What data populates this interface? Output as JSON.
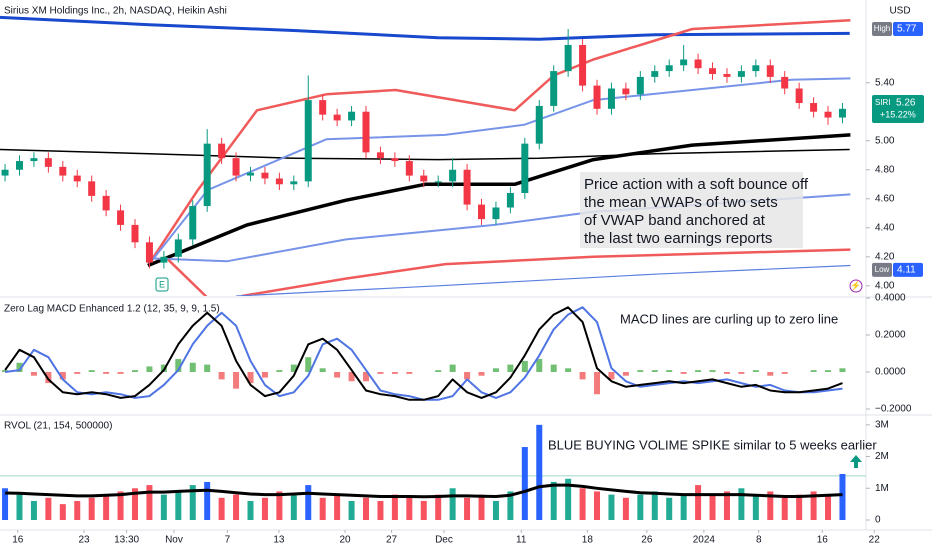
{
  "chart_data": [
    {
      "type": "candlestick",
      "title": "Sirius XM Holdings Inc., 2h, NASDAQ, Heikin Ashi",
      "currency": "USD",
      "up_color": "#089981",
      "down_color": "#f23645",
      "xlim": [
        -0.35,
        61.5
      ],
      "xticks": [
        {
          "value": 0.88,
          "label": "16"
        },
        {
          "value": 5.47,
          "label": "23"
        },
        {
          "value": 8.42,
          "label": "13:30"
        },
        {
          "value": 11.7,
          "label": "Nov"
        },
        {
          "value": 15.4,
          "label": "7"
        },
        {
          "value": 18.97,
          "label": "13"
        },
        {
          "value": 23.55,
          "label": "20"
        },
        {
          "value": 26.77,
          "label": "27"
        },
        {
          "value": 30.4,
          "label": "Dec"
        },
        {
          "value": 35.75,
          "label": "11"
        },
        {
          "value": 40.33,
          "label": "18"
        },
        {
          "value": 44.45,
          "label": "26"
        },
        {
          "value": 48.4,
          "label": "2024"
        },
        {
          "value": 52.2,
          "label": "8"
        },
        {
          "value": 56.6,
          "label": "16"
        },
        {
          "value": 60.2,
          "label": "22"
        }
      ],
      "x": [
        0,
        1,
        2,
        3,
        4,
        5,
        6,
        7,
        8,
        9,
        10,
        11,
        12,
        13,
        14,
        15,
        16,
        17,
        18,
        19,
        20,
        21,
        22,
        23,
        24,
        25,
        26,
        27,
        28,
        29,
        30,
        31,
        32,
        33,
        34,
        35,
        36,
        37,
        38,
        39,
        40,
        41,
        42,
        43,
        44,
        45,
        46,
        47,
        48,
        49,
        50,
        51,
        52,
        53,
        54,
        55,
        56,
        57,
        58
      ],
      "open": [
        4.76,
        4.8,
        4.86,
        4.88,
        4.82,
        4.76,
        4.72,
        4.62,
        4.52,
        4.42,
        4.3,
        4.16,
        4.2,
        4.32,
        4.55,
        4.98,
        4.88,
        4.76,
        4.78,
        4.74,
        4.7,
        4.72,
        5.28,
        5.18,
        5.14,
        5.2,
        4.92,
        4.88,
        4.86,
        4.76,
        4.72,
        4.72,
        4.8,
        4.56,
        4.46,
        4.54,
        4.64,
        4.98,
        5.24,
        5.48,
        5.66,
        5.38,
        5.22,
        5.36,
        5.32,
        5.44,
        5.48,
        5.52,
        5.56,
        5.5,
        5.46,
        5.44,
        5.48,
        5.52,
        5.44,
        5.36,
        5.26,
        5.2,
        5.16
      ],
      "high": [
        4.84,
        4.9,
        4.92,
        4.92,
        4.86,
        4.8,
        4.76,
        4.66,
        4.56,
        4.46,
        4.34,
        4.24,
        4.36,
        4.59,
        5.08,
        5.02,
        4.92,
        4.82,
        4.82,
        4.78,
        4.76,
        5.45,
        5.32,
        5.22,
        5.24,
        5.24,
        4.96,
        4.92,
        4.9,
        4.8,
        4.76,
        4.88,
        4.84,
        4.6,
        4.58,
        4.68,
        5.02,
        5.28,
        5.52,
        5.77,
        5.7,
        5.42,
        5.4,
        5.4,
        5.48,
        5.52,
        5.56,
        5.66,
        5.6,
        5.54,
        5.5,
        5.52,
        5.56,
        5.56,
        5.48,
        5.4,
        5.3,
        5.24,
        5.26
      ],
      "low": [
        4.72,
        4.76,
        4.82,
        4.78,
        4.72,
        4.68,
        4.58,
        4.48,
        4.38,
        4.26,
        4.12,
        4.12,
        4.16,
        4.28,
        4.51,
        4.84,
        4.72,
        4.72,
        4.7,
        4.66,
        4.66,
        4.68,
        5.14,
        5.1,
        5.1,
        4.88,
        4.84,
        4.82,
        4.72,
        4.68,
        4.68,
        4.68,
        4.52,
        4.42,
        4.42,
        4.5,
        4.6,
        4.94,
        5.2,
        5.44,
        5.34,
        5.18,
        5.18,
        5.28,
        5.28,
        5.4,
        5.44,
        5.48,
        5.46,
        5.42,
        5.4,
        5.4,
        5.44,
        5.4,
        5.32,
        5.22,
        5.16,
        5.11,
        5.12
      ],
      "close": [
        4.8,
        4.86,
        4.88,
        4.82,
        4.76,
        4.72,
        4.62,
        4.52,
        4.42,
        4.3,
        4.16,
        4.2,
        4.32,
        4.55,
        4.98,
        4.88,
        4.76,
        4.78,
        4.74,
        4.7,
        4.72,
        5.28,
        5.18,
        5.14,
        5.2,
        4.92,
        4.88,
        4.86,
        4.76,
        4.72,
        4.72,
        4.8,
        4.56,
        4.46,
        4.54,
        4.64,
        4.98,
        5.24,
        5.48,
        5.66,
        5.38,
        5.22,
        5.36,
        5.32,
        5.44,
        5.48,
        5.52,
        5.56,
        5.5,
        5.46,
        5.44,
        5.48,
        5.52,
        5.44,
        5.36,
        5.26,
        5.2,
        5.16,
        5.22
      ],
      "lines": [
        {
          "color": "#1848cc",
          "width": 3,
          "x": [
            -0.35,
            10,
            20,
            30,
            37,
            45,
            58.5
          ],
          "values": [
            5.85,
            5.8,
            5.76,
            5.71,
            5.7,
            5.73,
            5.74
          ]
        },
        {
          "color": "#000000",
          "width": 1.5,
          "x": [
            -0.35,
            10,
            20,
            30,
            37,
            45,
            58.5
          ],
          "values": [
            4.94,
            4.91,
            4.88,
            4.87,
            4.88,
            4.91,
            4.94
          ]
        },
        {
          "color": "#f05a5a",
          "width": 2.5,
          "x": [
            9.9,
            13.35,
            17.45,
            22.25,
            27.05,
            35.3,
            38,
            40.75,
            47.6,
            58.55
          ],
          "values": [
            4.14,
            4.66,
            5.21,
            5.32,
            5.35,
            5.21,
            5.45,
            5.56,
            5.77,
            5.83
          ]
        },
        {
          "color": "#7894e8",
          "width": 2,
          "x": [
            9.9,
            14.03,
            22.25,
            30.47,
            35.95,
            40.75,
            54.45,
            58.55
          ],
          "values": [
            4.14,
            4.66,
            5.01,
            5.04,
            5.11,
            5.28,
            5.42,
            5.43
          ]
        },
        {
          "color": "#000000",
          "width": 3.5,
          "x": [
            9.9,
            16.77,
            23.62,
            29.1,
            35.3,
            40.75,
            47.6,
            58.55
          ],
          "values": [
            4.14,
            4.42,
            4.59,
            4.7,
            4.7,
            4.87,
            4.97,
            5.04
          ]
        },
        {
          "color": "#7894e8",
          "width": 2,
          "x": [
            9.9,
            15.4,
            23.62,
            33.9,
            40.75,
            58.55
          ],
          "values": [
            4.19,
            4.17,
            4.32,
            4.42,
            4.51,
            4.63
          ]
        },
        {
          "color": "#f05a5a",
          "width": 2.5,
          "x": [
            11.3,
            14.0,
            15,
            16.4,
            23.6,
            30.5,
            40.75,
            58.55
          ],
          "values": [
            4.18,
            3.92,
            null,
            3.93,
            4.05,
            4.15,
            4.2,
            4.25
          ]
        },
        {
          "color": "#5b7fe0",
          "width": 1.2,
          "x": [
            16,
            30,
            45,
            58.55
          ],
          "values": [
            3.93,
            4.0,
            4.08,
            4.14
          ]
        }
      ],
      "ylim": [
        3.93,
        5.97
      ],
      "yticks": [
        {
          "value": 4,
          "label": "4.00"
        },
        {
          "value": 4.2,
          "label": "4.20"
        },
        {
          "value": 4.4,
          "label": "4.40"
        },
        {
          "value": 4.6,
          "label": "4.60"
        },
        {
          "value": 4.8,
          "label": "4.80"
        },
        {
          "value": 5,
          "label": "5.00"
        },
        {
          "value": 5.4,
          "label": "5.40"
        }
      ],
      "high_label": {
        "label": "High",
        "value": 5.77
      },
      "low_label": {
        "label": "Low",
        "value": 4.11
      },
      "last": {
        "symbol": "SIRI",
        "value": 5.26,
        "change": "+15.22%"
      },
      "annotation": [
        "Price action with a soft bounce off",
        "the mean VWAPs of two sets",
        "of VWAP band anchored at",
        "the last two earnings reports"
      ]
    },
    {
      "type": "macd",
      "title": "Zero Lag MACD Enhanced 1.2 (12, 35, 9, 9, 1.5)",
      "macd": [
        0.01,
        0.12,
        0.08,
        -0.04,
        -0.11,
        -0.12,
        -0.11,
        -0.12,
        -0.14,
        -0.13,
        -0.07,
        0.01,
        0.15,
        0.25,
        0.32,
        0.25,
        0.06,
        -0.07,
        -0.13,
        -0.11,
        -0.02,
        0.15,
        0.18,
        0.12,
        0.01,
        -0.1,
        -0.12,
        -0.13,
        -0.15,
        -0.15,
        -0.13,
        -0.04,
        -0.11,
        -0.14,
        -0.11,
        -0.03,
        0.09,
        0.23,
        0.31,
        0.35,
        0.27,
        0.02,
        -0.05,
        -0.08,
        -0.07,
        -0.06,
        -0.05,
        -0.06,
        -0.05,
        -0.04,
        -0.06,
        -0.08,
        -0.07,
        -0.1,
        -0.11,
        -0.11,
        -0.1,
        -0.09,
        -0.06
      ],
      "signal": [
        0.0,
        0.01,
        0.12,
        0.08,
        -0.04,
        -0.11,
        -0.12,
        -0.11,
        -0.12,
        -0.14,
        -0.13,
        -0.07,
        0.01,
        0.15,
        0.25,
        0.32,
        0.25,
        0.06,
        -0.07,
        -0.13,
        -0.11,
        -0.02,
        0.15,
        0.18,
        0.12,
        0.01,
        -0.1,
        -0.12,
        -0.13,
        -0.15,
        -0.15,
        -0.13,
        -0.04,
        -0.11,
        -0.14,
        -0.11,
        -0.03,
        0.09,
        0.23,
        0.31,
        0.35,
        0.27,
        0.02,
        -0.05,
        -0.08,
        -0.07,
        -0.06,
        -0.05,
        -0.06,
        -0.05,
        -0.04,
        -0.06,
        -0.08,
        -0.07,
        -0.1,
        -0.11,
        -0.11,
        -0.1,
        -0.09
      ],
      "histogram": [
        0.01,
        0.05,
        -0.02,
        -0.06,
        -0.04,
        -0.01,
        0.01,
        -0.01,
        -0.01,
        0.01,
        0.03,
        0.04,
        0.07,
        0.05,
        0.04,
        -0.04,
        -0.09,
        -0.06,
        -0.03,
        0.01,
        0.04,
        0.08,
        0.02,
        -0.03,
        -0.05,
        -0.05,
        -0.01,
        -0.01,
        -0.01,
        0,
        0.01,
        0.04,
        -0.04,
        -0.02,
        0.02,
        0.04,
        0.06,
        0.07,
        0.04,
        0.02,
        -0.04,
        -0.12,
        -0.04,
        -0.02,
        0.01,
        0.01,
        0.01,
        -0.01,
        0.01,
        0.01,
        -0.01,
        -0.01,
        0.01,
        -0.02,
        -0.01,
        0,
        0.01,
        0.01,
        0.02
      ],
      "macd_color": "#000000",
      "signal_color": "#4f74e3",
      "positive_color": "#4caf50",
      "negative_color": "#f05a5a",
      "ylim": [
        -0.22,
        0.4
      ],
      "yticks": [
        {
          "value": 0.4,
          "label": "0.4000"
        },
        {
          "value": 0.2,
          "label": "0.2000"
        },
        {
          "value": 0,
          "label": "0.0000"
        },
        {
          "value": -0.2,
          "label": "−0.2000"
        }
      ],
      "annotation": "MACD  lines are curling up to zero line"
    },
    {
      "type": "volume",
      "title": "RVOL (21, 154, 500000)",
      "values": [
        1000000,
        800000,
        600000,
        700000,
        500000,
        600000,
        700000,
        800000,
        900000,
        1000000,
        1100000,
        800000,
        900000,
        1100000,
        1200000,
        700000,
        800000,
        600000,
        700000,
        900000,
        800000,
        1100000,
        700000,
        800000,
        600000,
        700000,
        600000,
        800000,
        700000,
        600000,
        800000,
        1000000,
        700000,
        800000,
        600000,
        900000,
        2300000,
        3000000,
        1200000,
        1300000,
        1000000,
        900000,
        800000,
        700000,
        800000,
        900000,
        700000,
        800000,
        1100000,
        800000,
        900000,
        1000000,
        800000,
        900000,
        700000,
        800000,
        900000,
        800000,
        1450000
      ],
      "bar_colors": [
        "#2962ff",
        "#22ab94",
        "#22ab94",
        "#f7525f",
        "#f7525f",
        "#f7525f",
        "#f7525f",
        "#f7525f",
        "#f7525f",
        "#f7525f",
        "#f7525f",
        "#22ab94",
        "#22ab94",
        "#22ab94",
        "#2962ff",
        "#f7525f",
        "#f7525f",
        "#22ab94",
        "#f7525f",
        "#f7525f",
        "#22ab94",
        "#2962ff",
        "#f7525f",
        "#f7525f",
        "#22ab94",
        "#f7525f",
        "#f7525f",
        "#f7525f",
        "#f7525f",
        "#f7525f",
        "#f7525f",
        "#22ab94",
        "#f7525f",
        "#f7525f",
        "#22ab94",
        "#22ab94",
        "#2962ff",
        "#2962ff",
        "#22ab94",
        "#22ab94",
        "#f7525f",
        "#f7525f",
        "#22ab94",
        "#f7525f",
        "#22ab94",
        "#22ab94",
        "#22ab94",
        "#22ab94",
        "#f7525f",
        "#f7525f",
        "#f7525f",
        "#22ab94",
        "#22ab94",
        "#f7525f",
        "#f7525f",
        "#f7525f",
        "#f7525f",
        "#f7525f",
        "#2962ff"
      ],
      "average": [
        850000,
        840000,
        820000,
        800000,
        780000,
        760000,
        760000,
        780000,
        800000,
        840000,
        880000,
        880000,
        900000,
        920000,
        940000,
        900000,
        860000,
        820000,
        800000,
        800000,
        820000,
        840000,
        820000,
        800000,
        780000,
        760000,
        740000,
        740000,
        740000,
        730000,
        740000,
        760000,
        760000,
        750000,
        740000,
        780000,
        900000,
        1050000,
        1100000,
        1100000,
        1060000,
        1000000,
        950000,
        900000,
        860000,
        840000,
        820000,
        800000,
        800000,
        800000,
        800000,
        800000,
        780000,
        760000,
        740000,
        740000,
        760000,
        780000,
        800000
      ],
      "threshold": 1390000,
      "ylim": [
        -300000,
        3200000
      ],
      "yticks": [
        {
          "value": 3000000,
          "label": "3M"
        },
        {
          "value": 2000000,
          "label": "2M"
        },
        {
          "value": 1000000,
          "label": "1M"
        },
        0
      ],
      "annotation": "BLUE  BUYING VOLIME SPIKE similar to 5 weeks earlier"
    }
  ]
}
